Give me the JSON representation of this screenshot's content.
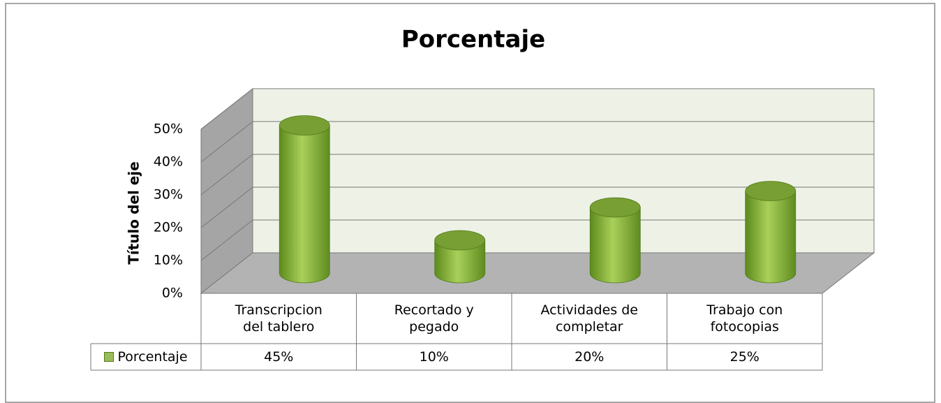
{
  "chart_data": {
    "type": "bar3d",
    "title": "Porcentaje",
    "y_label": "Título del eje",
    "categories": [
      "Transcripcion del tablero",
      "Recortado y pegado",
      "Actividades de completar",
      "Trabajo con fotocopias"
    ],
    "series": [
      {
        "name": "Porcentaje",
        "color": "#9bbb59",
        "values": [
          45,
          10,
          20,
          25
        ],
        "value_labels": [
          "45%",
          "10%",
          "20%",
          "25%"
        ]
      }
    ],
    "ylim": [
      0,
      50
    ],
    "yticks": [
      {
        "value": 0,
        "label": "0%"
      },
      {
        "value": 10,
        "label": "10%"
      },
      {
        "value": 20,
        "label": "20%"
      },
      {
        "value": 30,
        "label": "30%"
      },
      {
        "value": 40,
        "label": "40%"
      },
      {
        "value": 50,
        "label": "50%"
      }
    ],
    "grid": true,
    "legend": "table"
  }
}
